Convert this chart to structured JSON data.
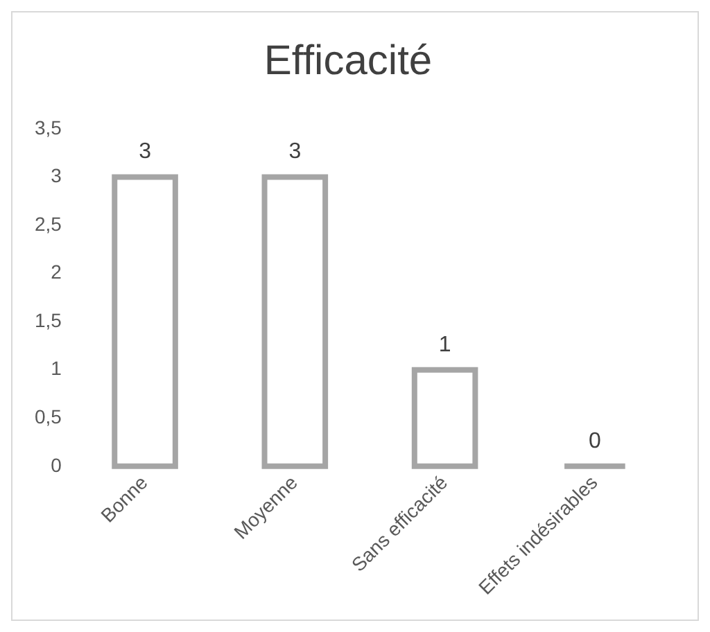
{
  "chart_data": {
    "type": "bar",
    "title": "Efficacité",
    "categories": [
      "Bonne",
      "Moyenne",
      "Sans efficacité",
      "Effets indésirables"
    ],
    "values": [
      3,
      3,
      1,
      0
    ],
    "color": "#a5a5a5",
    "ylim": [
      0,
      3.5
    ],
    "yticks": [
      0,
      {
        "value": 0.5,
        "label": "0,5"
      },
      1,
      {
        "value": 1.5,
        "label": "1,5"
      },
      2,
      {
        "value": 2.5,
        "label": "2,5"
      },
      3,
      {
        "value": 3.5,
        "label": "3,5"
      }
    ],
    "grid": false,
    "legend": false,
    "data_labels": true
  }
}
